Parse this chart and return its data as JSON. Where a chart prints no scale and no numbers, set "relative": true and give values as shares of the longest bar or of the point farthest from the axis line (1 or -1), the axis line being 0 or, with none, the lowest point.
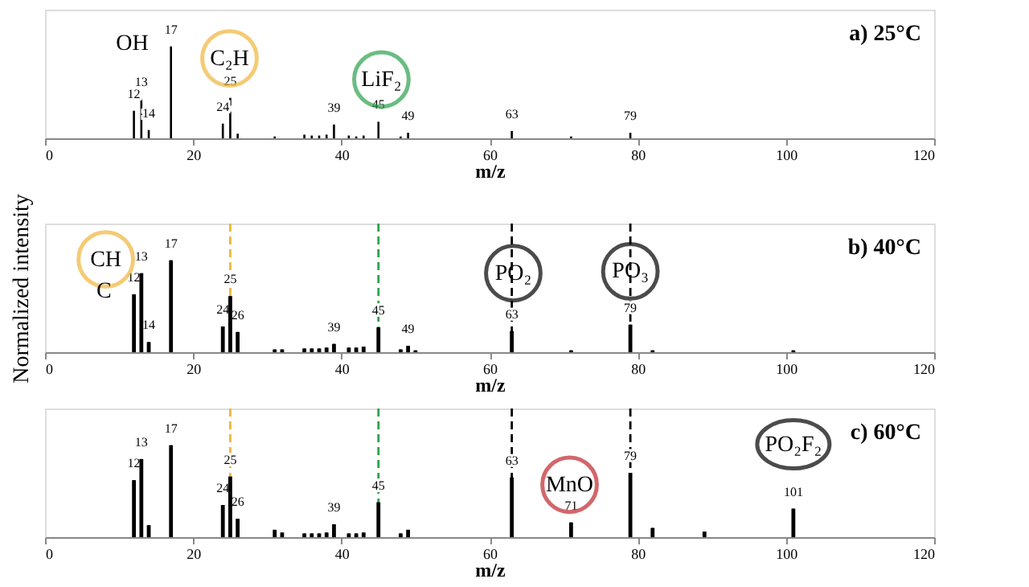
{
  "chart_data": [
    {
      "type": "bar",
      "title": "a)  25°C",
      "xlabel": "m/z",
      "relative": true,
      "xlim": [
        0,
        120
      ],
      "xticks": [
        0,
        20,
        40,
        60,
        80,
        100,
        120
      ],
      "grid": false,
      "legend": false,
      "x": [
        12,
        13,
        14,
        17,
        24,
        25,
        26,
        31,
        35,
        36,
        37,
        38,
        39,
        41,
        42,
        43,
        45,
        48,
        49,
        63,
        71,
        79
      ],
      "series": [
        {
          "color": "#000000",
          "values": [
            0.3,
            0.43,
            0.09,
            1,
            0.16,
            0.44,
            0.05,
            0.02,
            0.04,
            0.03,
            0.03,
            0.04,
            0.15,
            0.03,
            0.02,
            0.03,
            0.18,
            0.02,
            0.06,
            0.08,
            0.02,
            0.06
          ]
        }
      ],
      "annotations": [
        {
          "text": "12",
          "x": 12,
          "y": 0.3
        },
        {
          "text": "13",
          "x": 13,
          "y": 0.43
        },
        {
          "text": "14",
          "x": 14,
          "y": 0.09
        },
        {
          "text": "17",
          "x": 17,
          "y": 1
        },
        {
          "text": "24",
          "x": 24,
          "y": 0.16
        },
        {
          "text": "25",
          "x": 25,
          "y": 0.44
        },
        {
          "text": "39",
          "x": 39,
          "y": 0.15
        },
        {
          "text": "45",
          "x": 45,
          "y": 0.18
        },
        {
          "text": "49",
          "x": 49,
          "y": 0.06
        },
        {
          "text": "63",
          "x": 63,
          "y": 0.08
        },
        {
          "text": "79",
          "x": 79,
          "y": 0.06
        },
        {
          "text": "OH",
          "x": 17,
          "y": 1
        },
        {
          "text": "C₂H",
          "x": 24.9,
          "y": 0.87
        },
        {
          "text": "LiF₂",
          "x": 45.4,
          "y": 0.64
        }
      ]
    },
    {
      "type": "bar",
      "title": "b)  40°C",
      "xlabel": "m/z",
      "ylabel": "Normalized intensity",
      "relative": true,
      "xlim": [
        0,
        120
      ],
      "xticks": [
        0,
        20,
        40,
        60,
        80,
        100,
        120
      ],
      "grid": false,
      "legend": false,
      "x": [
        12,
        13,
        14,
        17,
        24,
        25,
        26,
        31,
        32,
        35,
        36,
        37,
        38,
        39,
        41,
        42,
        43,
        45,
        48,
        49,
        50,
        63,
        71,
        79,
        82,
        101
      ],
      "series": [
        {
          "color": "#000000",
          "values": [
            0.63,
            0.86,
            0.11,
            1,
            0.28,
            0.61,
            0.22,
            0.03,
            0.03,
            0.04,
            0.04,
            0.04,
            0.05,
            0.09,
            0.05,
            0.05,
            0.06,
            0.27,
            0.03,
            0.07,
            0.02,
            0.23,
            0.02,
            0.3,
            0.02,
            0.02
          ]
        }
      ],
      "ref_lines": [
        {
          "axis": "x",
          "value": 25,
          "color": "#f0b63c",
          "line_style": "dashed"
        },
        {
          "axis": "x",
          "value": 45,
          "color": "#2ca24c",
          "line_style": "dashed"
        },
        {
          "axis": "x",
          "value": 63,
          "color": "#000000",
          "line_style": "dashed"
        },
        {
          "axis": "x",
          "value": 79,
          "color": "#000000",
          "line_style": "dashed"
        }
      ],
      "annotations": [
        {
          "text": "12",
          "x": 12,
          "y": 0.63
        },
        {
          "text": "13",
          "x": 13,
          "y": 0.86
        },
        {
          "text": "14",
          "x": 14,
          "y": 0.11
        },
        {
          "text": "17",
          "x": 17,
          "y": 1
        },
        {
          "text": "24",
          "x": 24,
          "y": 0.28
        },
        {
          "text": "25",
          "x": 25,
          "y": 0.61
        },
        {
          "text": "26",
          "x": 26,
          "y": 0.22
        },
        {
          "text": "39",
          "x": 39,
          "y": 0.09
        },
        {
          "text": "45",
          "x": 45,
          "y": 0.27
        },
        {
          "text": "49",
          "x": 49,
          "y": 0.07
        },
        {
          "text": "63",
          "x": 63,
          "y": 0.23
        },
        {
          "text": "79",
          "x": 79,
          "y": 0.3
        },
        {
          "text": "CH",
          "x": 8.2,
          "y": 1.01
        },
        {
          "text": "C",
          "x": 12,
          "y": 0.63
        },
        {
          "text": "PO₂",
          "x": 63.2,
          "y": 0.86
        },
        {
          "text": "PO₃",
          "x": 79,
          "y": 0.88
        }
      ]
    },
    {
      "type": "bar",
      "title": "c)  60°C",
      "xlabel": "m/z",
      "relative": true,
      "xlim": [
        0,
        120
      ],
      "xticks": [
        0,
        20,
        40,
        60,
        80,
        100,
        120
      ],
      "grid": false,
      "legend": false,
      "x": [
        12,
        13,
        14,
        17,
        24,
        25,
        26,
        31,
        32,
        35,
        36,
        37,
        38,
        39,
        41,
        42,
        43,
        45,
        48,
        49,
        63,
        71,
        79,
        82,
        89,
        101
      ],
      "series": [
        {
          "color": "#000000",
          "values": [
            0.62,
            0.85,
            0.13,
            1,
            0.35,
            0.66,
            0.2,
            0.08,
            0.05,
            0.04,
            0.04,
            0.04,
            0.05,
            0.14,
            0.04,
            0.04,
            0.05,
            0.38,
            0.04,
            0.08,
            0.65,
            0.16,
            0.7,
            0.1,
            0.06,
            0.31
          ]
        }
      ],
      "ref_lines": [
        {
          "axis": "x",
          "value": 25,
          "color": "#f0b63c",
          "line_style": "dashed"
        },
        {
          "axis": "x",
          "value": 45,
          "color": "#2ca24c",
          "line_style": "dashed"
        },
        {
          "axis": "x",
          "value": 63,
          "color": "#000000",
          "line_style": "dashed"
        },
        {
          "axis": "x",
          "value": 79,
          "color": "#000000",
          "line_style": "dashed"
        }
      ],
      "annotations": [
        {
          "text": "12",
          "x": 12,
          "y": 0.62
        },
        {
          "text": "13",
          "x": 13,
          "y": 0.85
        },
        {
          "text": "17",
          "x": 17,
          "y": 1
        },
        {
          "text": "24",
          "x": 24,
          "y": 0.35
        },
        {
          "text": "25",
          "x": 25,
          "y": 0.66
        },
        {
          "text": "26",
          "x": 26,
          "y": 0.2
        },
        {
          "text": "39",
          "x": 39,
          "y": 0.14
        },
        {
          "text": "45",
          "x": 45,
          "y": 0.38
        },
        {
          "text": "63",
          "x": 63,
          "y": 0.65
        },
        {
          "text": "71",
          "x": 71,
          "y": 0.16
        },
        {
          "text": "79",
          "x": 79,
          "y": 0.7
        },
        {
          "text": "101",
          "x": 101,
          "y": 0.31
        },
        {
          "text": "MnO",
          "x": 70.8,
          "y": 0.57
        },
        {
          "text": "PO₂F₂",
          "x": 101,
          "y": 0.31
        }
      ]
    }
  ]
}
